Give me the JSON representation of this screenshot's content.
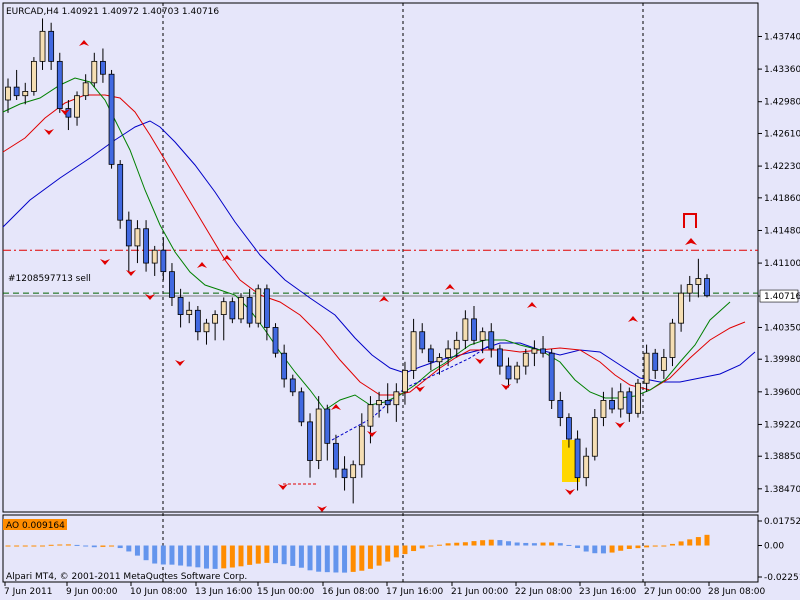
{
  "chart_header": {
    "title": "EURCAD,H4  1.40921 1.40972 1.40703 1.40716"
  },
  "order_label": "#1208597713 sell",
  "footer_text": "Alpari MT4, © 2001-2011 MetaQuotes Software Corp.",
  "colors": {
    "background": "#e6e6fa",
    "bull_candle": "#f5deb3",
    "bear_candle": "#4169e1",
    "ma_fast": "#008000",
    "ma_mid": "#e00000",
    "ma_slow": "#0000c8",
    "fractal": "#e00000",
    "ao_up": "#ff8c00",
    "ao_down": "#6495ed",
    "highlight": "#ffd700"
  },
  "chart_data": [
    {
      "type": "candlestick",
      "symbol": "EURCAD",
      "timeframe": "H4",
      "ohlc_header": {
        "open": 1.40921,
        "high": 1.40972,
        "low": 1.40703,
        "close": 1.40716
      },
      "y_ticks": [
        "1.43740",
        "1.43360",
        "1.42980",
        "1.42610",
        "1.42230",
        "1.41860",
        "1.41480",
        "1.41100",
        "1.40716",
        "1.40350",
        "1.39980",
        "1.39600",
        "1.39220",
        "1.38850",
        "1.38470"
      ],
      "current_price_label": "1.40716",
      "x_ticks": [
        "7 Jun 2011",
        "9 Jun 00:00",
        "10 Jun 08:00",
        "13 Jun 16:00",
        "15 Jun 00:00",
        "16 Jun 08:00",
        "17 Jun 16:00",
        "21 Jun 00:00",
        "22 Jun 08:00",
        "23 Jun 16:00",
        "27 Jun 00:00",
        "28 Jun 08:00"
      ],
      "ylim": [
        1.382,
        1.4413
      ],
      "resistance_level": 1.4125,
      "order_level": 1.4075,
      "current_price": 1.40716,
      "candles": [
        [
          1.43,
          1.4325,
          1.4285,
          1.4315
        ],
        [
          1.4315,
          1.4335,
          1.43,
          1.4305
        ],
        [
          1.4305,
          1.432,
          1.4295,
          1.431
        ],
        [
          1.431,
          1.435,
          1.4305,
          1.4345
        ],
        [
          1.4345,
          1.4395,
          1.4335,
          1.438
        ],
        [
          1.438,
          1.439,
          1.4335,
          1.4345
        ],
        [
          1.4345,
          1.4355,
          1.4285,
          1.429
        ],
        [
          1.429,
          1.43,
          1.4265,
          1.428
        ],
        [
          1.428,
          1.431,
          1.427,
          1.4305
        ],
        [
          1.4305,
          1.433,
          1.43,
          1.432
        ],
        [
          1.432,
          1.4355,
          1.4315,
          1.4345
        ],
        [
          1.4345,
          1.436,
          1.432,
          1.433
        ],
        [
          1.433,
          1.4335,
          1.422,
          1.4225
        ],
        [
          1.4225,
          1.423,
          1.415,
          1.416
        ],
        [
          1.416,
          1.417,
          1.41,
          1.413
        ],
        [
          1.413,
          1.416,
          1.411,
          1.415
        ],
        [
          1.415,
          1.416,
          1.41,
          1.411
        ],
        [
          1.411,
          1.413,
          1.4095,
          1.4125
        ],
        [
          1.4125,
          1.414,
          1.409,
          1.41
        ],
        [
          1.41,
          1.411,
          1.406,
          1.407
        ],
        [
          1.407,
          1.408,
          1.4035,
          1.405
        ],
        [
          1.405,
          1.4065,
          1.404,
          1.4055
        ],
        [
          1.4055,
          1.406,
          1.402,
          1.403
        ],
        [
          1.403,
          1.4045,
          1.4015,
          1.404
        ],
        [
          1.404,
          1.4055,
          1.402,
          1.405
        ],
        [
          1.405,
          1.407,
          1.402,
          1.4065
        ],
        [
          1.4065,
          1.407,
          1.404,
          1.4045
        ],
        [
          1.4045,
          1.4075,
          1.404,
          1.407
        ],
        [
          1.407,
          1.408,
          1.4035,
          1.404
        ],
        [
          1.404,
          1.4085,
          1.4035,
          1.408
        ],
        [
          1.408,
          1.4085,
          1.402,
          1.4035
        ],
        [
          1.4035,
          1.404,
          1.4,
          1.4005
        ],
        [
          1.4005,
          1.4015,
          1.3965,
          1.3975
        ],
        [
          1.3975,
          1.398,
          1.3955,
          1.396
        ],
        [
          1.396,
          1.3965,
          1.392,
          1.3925
        ],
        [
          1.3925,
          1.3935,
          1.386,
          1.388
        ],
        [
          1.388,
          1.3955,
          1.387,
          1.394
        ],
        [
          1.394,
          1.3945,
          1.388,
          1.39
        ],
        [
          1.39,
          1.391,
          1.386,
          1.387
        ],
        [
          1.387,
          1.3885,
          1.3845,
          1.386
        ],
        [
          1.386,
          1.388,
          1.383,
          1.3875
        ],
        [
          1.3875,
          1.3935,
          1.386,
          1.392
        ],
        [
          1.392,
          1.3955,
          1.39,
          1.3945
        ],
        [
          1.3945,
          1.396,
          1.393,
          1.395
        ],
        [
          1.395,
          1.397,
          1.3935,
          1.3945
        ],
        [
          1.3945,
          1.397,
          1.3925,
          1.396
        ],
        [
          1.396,
          1.3995,
          1.3945,
          1.3985
        ],
        [
          1.3985,
          1.4045,
          1.3975,
          1.403
        ],
        [
          1.403,
          1.404,
          1.4005,
          1.401
        ],
        [
          1.401,
          1.4015,
          1.3985,
          1.3995
        ],
        [
          1.3995,
          1.4005,
          1.398,
          1.4
        ],
        [
          1.4,
          1.402,
          1.399,
          1.401
        ],
        [
          1.401,
          1.403,
          1.4,
          1.402
        ],
        [
          1.402,
          1.4055,
          1.401,
          1.4045
        ],
        [
          1.4045,
          1.406,
          1.4015,
          1.402
        ],
        [
          1.402,
          1.4035,
          1.4005,
          1.403
        ],
        [
          1.403,
          1.404,
          1.4,
          1.401
        ],
        [
          1.401,
          1.4015,
          1.398,
          1.399
        ],
        [
          1.399,
          1.4,
          1.3965,
          1.3975
        ],
        [
          1.3975,
          1.3995,
          1.397,
          1.399
        ],
        [
          1.399,
          1.401,
          1.398,
          1.4005
        ],
        [
          1.4005,
          1.402,
          1.399,
          1.401
        ],
        [
          1.401,
          1.4025,
          1.4,
          1.4005
        ],
        [
          1.4005,
          1.401,
          1.394,
          1.395
        ],
        [
          1.395,
          1.396,
          1.392,
          1.393
        ],
        [
          1.393,
          1.3935,
          1.3895,
          1.3905
        ],
        [
          1.3905,
          1.3915,
          1.3845,
          1.386
        ],
        [
          1.386,
          1.3895,
          1.385,
          1.3885
        ],
        [
          1.3885,
          1.394,
          1.388,
          1.393
        ],
        [
          1.393,
          1.396,
          1.392,
          1.395
        ],
        [
          1.395,
          1.3965,
          1.3935,
          1.394
        ],
        [
          1.394,
          1.397,
          1.393,
          1.396
        ],
        [
          1.396,
          1.3965,
          1.3925,
          1.3935
        ],
        [
          1.3935,
          1.3975,
          1.393,
          1.397
        ],
        [
          1.397,
          1.4015,
          1.396,
          1.4005
        ],
        [
          1.4005,
          1.401,
          1.3975,
          1.3985
        ],
        [
          1.3985,
          1.401,
          1.3975,
          1.4
        ],
        [
          1.4,
          1.4045,
          1.399,
          1.404
        ],
        [
          1.404,
          1.4085,
          1.403,
          1.4075
        ],
        [
          1.4075,
          1.4095,
          1.4065,
          1.4085
        ],
        [
          1.4085,
          1.4115,
          1.407,
          1.4092
        ],
        [
          1.4092,
          1.4097,
          1.407,
          1.4072
        ]
      ],
      "indicator": {
        "name": "AO",
        "label": "AO 0.009164",
        "value": 0.009164,
        "y_ticks": [
          "0.017523",
          "0.00",
          "-0.02251"
        ]
      }
    }
  ]
}
